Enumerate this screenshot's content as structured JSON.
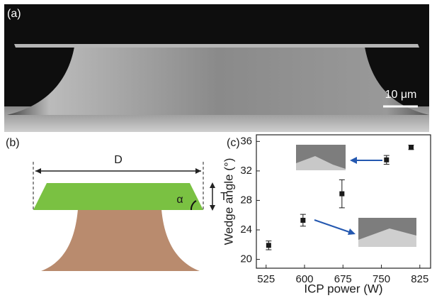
{
  "panel_a": {
    "label": "(a)",
    "scale_bar": "10 μm"
  },
  "panel_b": {
    "label": "(b)",
    "diameter": "D",
    "thickness": "T",
    "angle": "α"
  },
  "chart_data": {
    "type": "scatter",
    "label": "(c)",
    "x_label": "ICP power (W)",
    "y_label": "Wedge angle (°)",
    "x": [
      530,
      597,
      673,
      760,
      808
    ],
    "series": [
      {
        "color": "#1a1a1a",
        "values": [
          21.9,
          25.3,
          28.9,
          33.5,
          35.2
        ],
        "errors": [
          0.6,
          0.8,
          1.9,
          0.6,
          0.3
        ]
      }
    ],
    "xlim": [
      506,
      846
    ],
    "ylim": [
      18.8,
      36.9
    ],
    "xticks": [
      525,
      600,
      675,
      750,
      825
    ],
    "yticks": [
      20,
      24,
      28,
      32,
      36
    ]
  }
}
